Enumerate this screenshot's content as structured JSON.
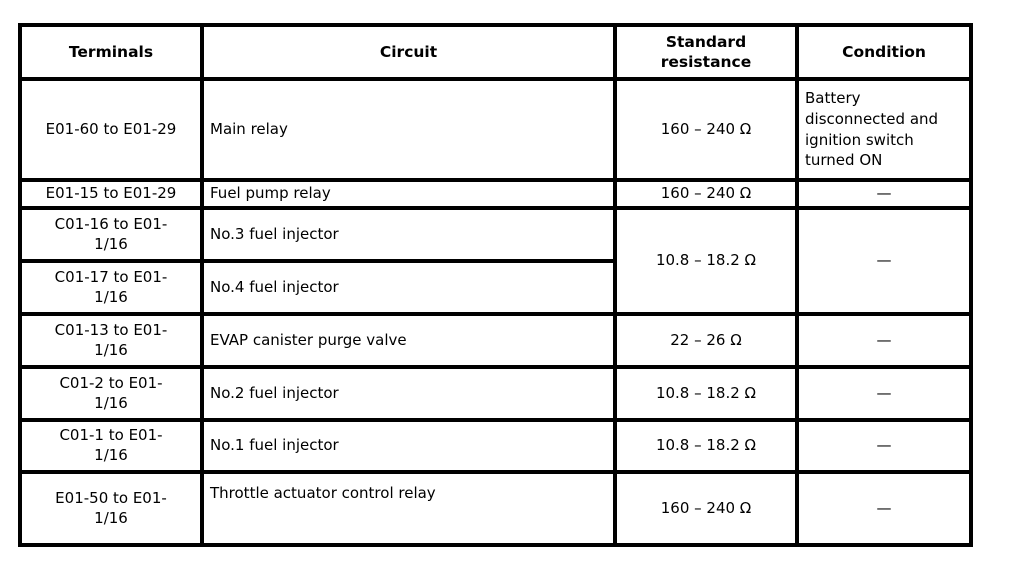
{
  "table": {
    "headers": {
      "terminals": "Terminals",
      "circuit": "Circuit",
      "resistance": "Standard\nresistance",
      "condition": "Condition"
    },
    "rows": [
      {
        "terminals": "E01-60 to E01-29",
        "circuit": "Main relay",
        "resistance": "160 – 240 Ω",
        "condition": "Battery\ndisconnected and\nignition switch\nturned ON"
      },
      {
        "terminals": "E01-15 to E01-29",
        "circuit": "Fuel pump relay",
        "resistance": "160 – 240 Ω",
        "condition": "—"
      },
      {
        "terminals": "C01-16 to E01-\n1/16",
        "circuit": "No.3 fuel injector",
        "resistance": "10.8 – 18.2 Ω",
        "condition": "—"
      },
      {
        "terminals": "C01-17 to E01-\n1/16",
        "circuit": "No.4 fuel injector"
      },
      {
        "terminals": "C01-13 to E01-\n1/16",
        "circuit": "EVAP canister purge valve",
        "resistance": "22 – 26 Ω",
        "condition": "—"
      },
      {
        "terminals": "C01-2 to E01-\n1/16",
        "circuit": "No.2 fuel injector",
        "resistance": "10.8 – 18.2 Ω",
        "condition": "—"
      },
      {
        "terminals": "C01-1 to E01-\n1/16",
        "circuit": "No.1 fuel injector",
        "resistance": "10.8 – 18.2 Ω",
        "condition": "—"
      },
      {
        "terminals": "E01-50 to E01-\n1/16",
        "circuit": "Throttle actuator control relay",
        "resistance": "160 – 240 Ω",
        "condition": "—"
      }
    ]
  }
}
